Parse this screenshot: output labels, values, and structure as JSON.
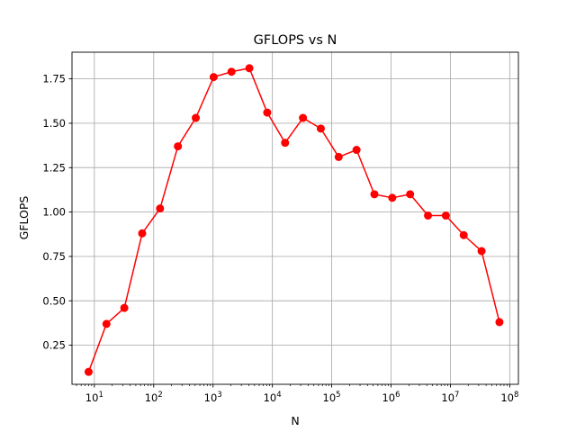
{
  "chart_data": {
    "type": "line",
    "title": "GFLOPS vs N",
    "xlabel": "N",
    "ylabel": "GFLOPS",
    "x_scale": "log",
    "xlim": [
      4.2,
      140000000
    ],
    "ylim": [
      0.03,
      1.9
    ],
    "x_ticks": [
      {
        "base": "10",
        "exp": "1",
        "value": 10
      },
      {
        "base": "10",
        "exp": "2",
        "value": 100
      },
      {
        "base": "10",
        "exp": "3",
        "value": 1000
      },
      {
        "base": "10",
        "exp": "4",
        "value": 10000
      },
      {
        "base": "10",
        "exp": "5",
        "value": 100000
      },
      {
        "base": "10",
        "exp": "6",
        "value": 1000000
      },
      {
        "base": "10",
        "exp": "7",
        "value": 10000000
      },
      {
        "base": "10",
        "exp": "8",
        "value": 100000000
      }
    ],
    "y_ticks": [
      {
        "value": 0.25,
        "label": "0.25"
      },
      {
        "value": 0.5,
        "label": "0.50"
      },
      {
        "value": 0.75,
        "label": "0.75"
      },
      {
        "value": 1.0,
        "label": "1.00"
      },
      {
        "value": 1.25,
        "label": "1.25"
      },
      {
        "value": 1.5,
        "label": "1.50"
      },
      {
        "value": 1.75,
        "label": "1.75"
      }
    ],
    "grid": true,
    "series": [
      {
        "color": "#ff0000",
        "marker": "circle",
        "x": [
          8,
          16,
          32,
          64,
          128,
          256,
          512,
          1024,
          2048,
          4096,
          8192,
          16384,
          32768,
          65536,
          131072,
          262144,
          524288,
          1048576,
          2097152,
          4194304,
          8388608,
          16777216,
          33554432,
          67108864
        ],
        "y": [
          0.1,
          0.37,
          0.46,
          0.88,
          1.02,
          1.37,
          1.53,
          1.76,
          1.79,
          1.81,
          1.56,
          1.39,
          1.53,
          1.47,
          1.31,
          1.35,
          1.1,
          1.08,
          1.1,
          0.98,
          0.98,
          0.87,
          0.78,
          0.38
        ]
      }
    ]
  }
}
